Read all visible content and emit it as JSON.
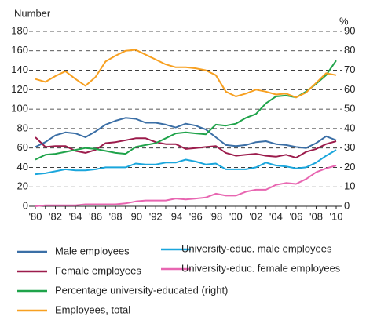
{
  "chart_data": {
    "type": "line",
    "ylabel": "Number",
    "y2label": "%",
    "categories": [
      "'80",
      null,
      "'82",
      null,
      "'84",
      null,
      "'86",
      null,
      "'88",
      null,
      "'90",
      null,
      "'92",
      null,
      "'94",
      null,
      "'96",
      null,
      "'98",
      null,
      "'00",
      null,
      "'02",
      null,
      "'04",
      null,
      "'06",
      null,
      "'08",
      null,
      "'10"
    ],
    "ylim": [
      0,
      180
    ],
    "yticks": [
      0,
      20,
      40,
      60,
      80,
      100,
      120,
      140,
      160,
      180
    ],
    "y2lim": [
      0,
      90
    ],
    "y2ticks": [
      0,
      10,
      20,
      30,
      40,
      50,
      60,
      70,
      80,
      90
    ],
    "grid": true,
    "series": [
      {
        "name": "Male employees",
        "color": "#3b6fa6",
        "values": [
          61,
          66,
          73,
          76,
          75,
          71,
          77,
          84,
          88,
          91,
          90,
          86,
          86,
          84,
          81,
          85,
          83,
          79,
          71,
          63,
          62,
          63,
          66,
          67,
          64,
          63,
          61,
          60,
          65,
          72,
          68
        ]
      },
      {
        "name": "University-educ. male employees",
        "color": "#1aa6dc",
        "values": [
          33,
          34,
          36,
          38,
          37,
          37,
          38,
          40,
          40,
          40,
          44,
          43,
          43,
          45,
          45,
          48,
          46,
          43,
          44,
          38,
          38,
          38,
          40,
          45,
          42,
          41,
          39,
          40,
          45,
          52,
          58
        ]
      },
      {
        "name": "Female employees",
        "color": "#9c1c4c",
        "values": [
          71,
          61,
          62,
          62,
          57,
          55,
          58,
          65,
          66,
          68,
          70,
          70,
          66,
          64,
          64,
          59,
          60,
          61,
          62,
          55,
          52,
          53,
          54,
          52,
          51,
          53,
          50,
          56,
          59,
          64,
          67
        ]
      },
      {
        "name": "University-educ. female employees",
        "color": "#e866b1",
        "values": [
          0,
          1,
          1,
          1,
          1,
          2,
          2,
          2,
          2,
          3,
          5,
          6,
          6,
          6,
          8,
          7,
          8,
          9,
          13,
          11,
          11,
          15,
          17,
          17,
          22,
          24,
          23,
          28,
          35,
          39,
          42
        ]
      },
      {
        "name": "Percentage university-educated (right)",
        "color": "#1fa34a",
        "axis": "y2",
        "values": [
          24,
          26.5,
          27,
          28,
          29,
          30,
          29.5,
          28.5,
          27.5,
          27,
          30.5,
          31.5,
          32.5,
          35,
          37.5,
          38,
          37.5,
          37,
          42,
          41.5,
          42.5,
          45.5,
          47.5,
          53,
          56.5,
          57,
          56,
          59,
          63,
          67.5,
          75
        ]
      },
      {
        "name": "Employees, total",
        "color": "#f7a021",
        "values": [
          131,
          128,
          134,
          139,
          131,
          124,
          133,
          149,
          155,
          160,
          161,
          156,
          151,
          146,
          143,
          143,
          142,
          140,
          135,
          118,
          113,
          116,
          120,
          118,
          115,
          116,
          112,
          117,
          127,
          137,
          135
        ]
      }
    ]
  }
}
